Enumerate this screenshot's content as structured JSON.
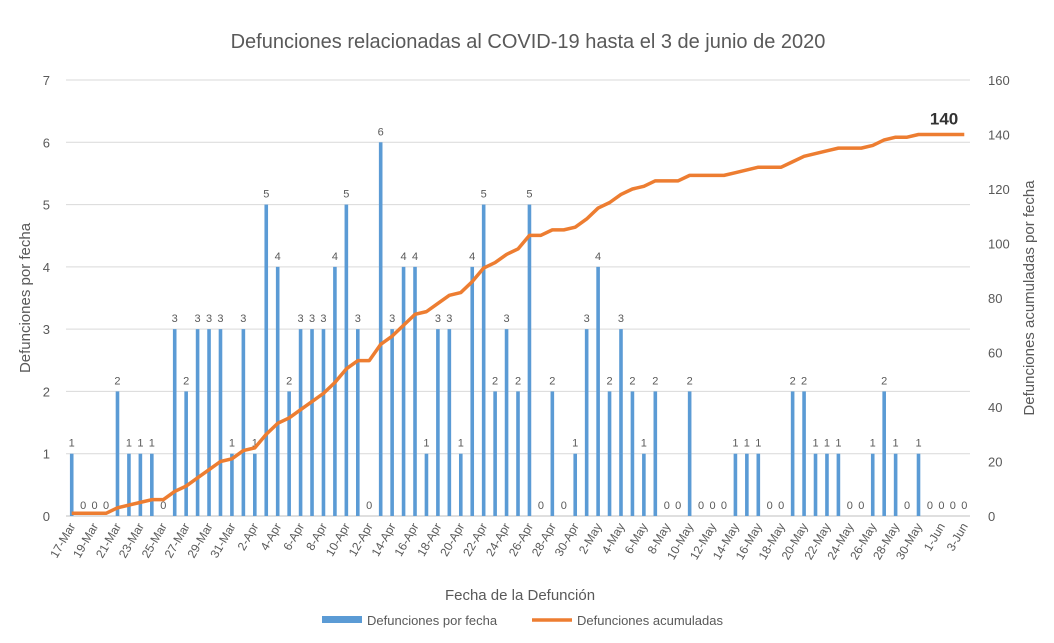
{
  "chart_data": {
    "type": "bar-line",
    "title": "Defunciones relacionadas al COVID-19 hasta el 3 de junio de 2020",
    "x_label": "Fecha de la Defunción",
    "y_label": "Defunciones por fecha",
    "y2_label": "Defunciones acumuladas por fecha",
    "categories": [
      "17-Mar",
      null,
      "19-Mar",
      null,
      "21-Mar",
      null,
      "23-Mar",
      null,
      "25-Mar",
      null,
      "27-Mar",
      null,
      "29-Mar",
      null,
      "31-Mar",
      null,
      "2-Apr",
      null,
      "4-Apr",
      null,
      "6-Apr",
      null,
      "8-Apr",
      null,
      "10-Apr",
      null,
      "12-Apr",
      null,
      "14-Apr",
      null,
      "16-Apr",
      null,
      "18-Apr",
      null,
      "20-Apr",
      null,
      "22-Apr",
      null,
      "24-Apr",
      null,
      "26-Apr",
      null,
      "28-Apr",
      null,
      "30-Apr",
      null,
      "2-May",
      null,
      "4-May",
      null,
      "6-May",
      null,
      "8-May",
      null,
      "10-May",
      null,
      "12-May",
      null,
      "14-May",
      null,
      "16-May",
      null,
      "18-May",
      null,
      "20-May",
      null,
      "22-May",
      null,
      "24-May",
      null,
      "26-May",
      null,
      "28-May",
      null,
      "30-May",
      null,
      "1-Jun",
      null,
      "3-Jun"
    ],
    "series": [
      {
        "name": "Defunciones por fecha",
        "color": "#5b9bd5",
        "type": "bar",
        "values": [
          1,
          0,
          0,
          0,
          2,
          1,
          1,
          1,
          0,
          3,
          2,
          3,
          3,
          3,
          1,
          3,
          1,
          5,
          4,
          2,
          3,
          3,
          3,
          4,
          5,
          3,
          0,
          6,
          3,
          4,
          4,
          1,
          3,
          3,
          1,
          4,
          5,
          2,
          3,
          2,
          5,
          0,
          2,
          0,
          1,
          3,
          4,
          2,
          3,
          2,
          1,
          2,
          0,
          0,
          2,
          0,
          0,
          0,
          1,
          1,
          1,
          0,
          0,
          2,
          2,
          1,
          1,
          1,
          0,
          0,
          1,
          2,
          1,
          0,
          1,
          0,
          0,
          0,
          0
        ]
      },
      {
        "name": "Defunciones acumuladas",
        "color": "#ed7d31",
        "type": "line",
        "axis": "y2",
        "values": [
          1,
          1,
          1,
          1,
          3,
          4,
          5,
          6,
          6,
          9,
          11,
          14,
          17,
          20,
          21,
          24,
          25,
          30,
          34,
          36,
          39,
          42,
          45,
          49,
          54,
          57,
          57,
          63,
          66,
          70,
          74,
          75,
          78,
          81,
          82,
          86,
          91,
          93,
          96,
          98,
          103,
          103,
          105,
          105,
          106,
          109,
          113,
          115,
          118,
          120,
          121,
          123,
          123,
          123,
          125,
          125,
          125,
          125,
          126,
          127,
          128,
          128,
          128,
          130,
          132,
          133,
          134,
          135,
          135,
          135,
          136,
          138,
          139,
          139,
          140,
          140,
          140,
          140,
          140
        ]
      }
    ],
    "ylim": [
      0,
      7
    ],
    "yticks": [
      0,
      1,
      2,
      3,
      4,
      5,
      6,
      7
    ],
    "y2lim": [
      0,
      160
    ],
    "y2ticks": [
      0,
      20,
      40,
      60,
      80,
      100,
      120,
      140,
      160
    ],
    "grid": true,
    "legend": "bottom"
  }
}
